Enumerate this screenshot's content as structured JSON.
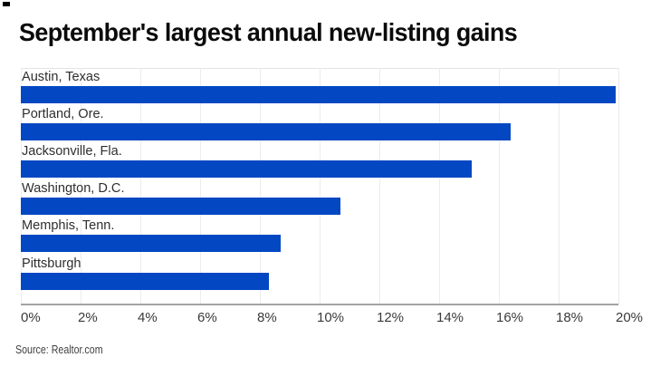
{
  "chart_data": {
    "type": "bar",
    "orientation": "horizontal",
    "title": "September's largest annual new-listing gains",
    "categories": [
      "Austin, Texas",
      "Portland, Ore.",
      "Jacksonville, Fla.",
      "Washington, D.C.",
      "Memphis, Tenn.",
      "Pittsburgh"
    ],
    "values": [
      19.9,
      16.4,
      15.1,
      10.7,
      8.7,
      8.3
    ],
    "unit": "%",
    "xlabel": "",
    "ylabel": "",
    "xlim": [
      0,
      20
    ],
    "x_ticks": [
      "0%",
      "2%",
      "4%",
      "6%",
      "8%",
      "10%",
      "12%",
      "14%",
      "16%",
      "18%",
      "20%"
    ],
    "grid": "vertical",
    "legend": "none",
    "bar_color": "#0347c2",
    "source_label": "Source: Realtor.com"
  }
}
